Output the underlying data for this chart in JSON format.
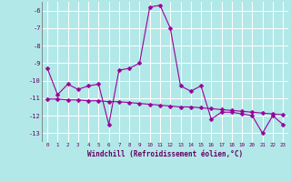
{
  "x": [
    0,
    1,
    2,
    3,
    4,
    5,
    6,
    7,
    8,
    9,
    10,
    11,
    12,
    13,
    14,
    15,
    16,
    17,
    18,
    19,
    20,
    21,
    22,
    23
  ],
  "line1": [
    -9.3,
    -10.8,
    -10.2,
    -10.5,
    -10.3,
    -10.2,
    -12.5,
    -9.4,
    -9.3,
    -9.0,
    -5.8,
    -5.7,
    -7.0,
    -10.3,
    -10.6,
    -10.3,
    -12.2,
    -11.8,
    -11.8,
    -11.9,
    -12.0,
    -13.0,
    -12.0,
    -12.5
  ],
  "line2": [
    -11.05,
    -11.05,
    -11.1,
    -11.1,
    -11.15,
    -11.15,
    -11.2,
    -11.2,
    -11.25,
    -11.3,
    -11.35,
    -11.4,
    -11.45,
    -11.5,
    -11.5,
    -11.55,
    -11.6,
    -11.65,
    -11.7,
    -11.75,
    -11.8,
    -11.85,
    -11.9,
    -11.95
  ],
  "line_color": "#990099",
  "bg_color": "#b3e8e8",
  "grid_color": "#ffffff",
  "xlabel": "Windchill (Refroidissement éolien,°C)",
  "ylim": [
    -13.5,
    -5.5
  ],
  "xlim": [
    -0.5,
    23.5
  ],
  "yticks": [
    -6,
    -7,
    -8,
    -9,
    -10,
    -11,
    -12,
    -13
  ],
  "xtick_labels": [
    "0",
    "1",
    "2",
    "3",
    "4",
    "5",
    "6",
    "7",
    "8",
    "9",
    "10",
    "11",
    "12",
    "13",
    "14",
    "15",
    "16",
    "17",
    "18",
    "19",
    "20",
    "21",
    "22",
    "23"
  ],
  "marker": "D",
  "markersize": 2.5,
  "linewidth": 0.8
}
